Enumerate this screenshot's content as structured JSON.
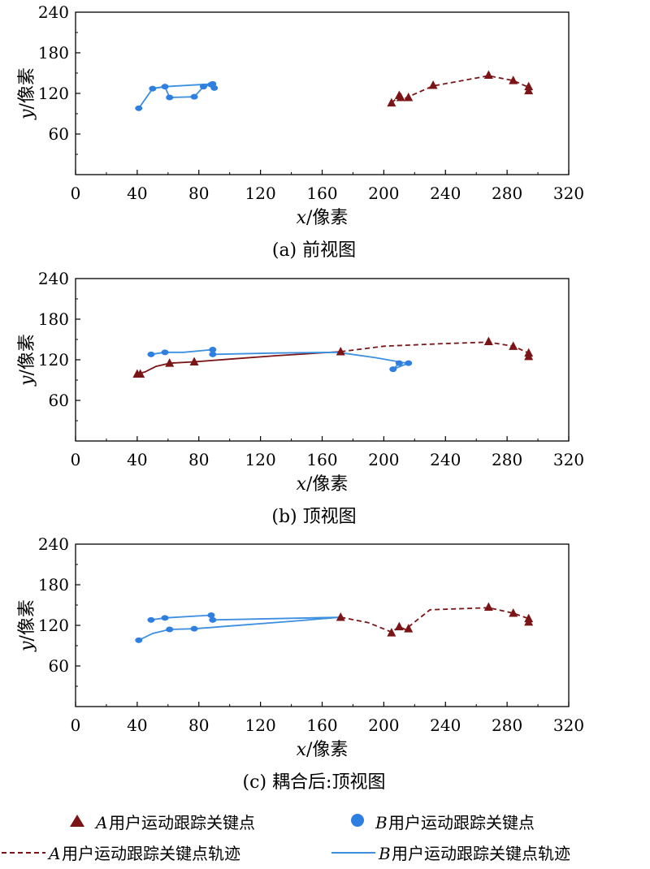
{
  "colors": {
    "series_a": "#7b1416",
    "series_b": "#3d8fe0",
    "marker_b": "#2f7fe0",
    "axis": "#000000"
  },
  "chart_data": [
    {
      "type": "line",
      "panel": "a",
      "caption": "(a) 前视图",
      "xlabel_var": "x",
      "xlabel_unit": "/像素",
      "ylabel_var": "y",
      "ylabel_unit": "/像素",
      "xlim": [
        0,
        320
      ],
      "ylim": [
        0,
        240
      ],
      "xticks": [
        0,
        40,
        80,
        120,
        160,
        200,
        240,
        280,
        320
      ],
      "yticks": [
        60,
        120,
        180,
        240
      ],
      "series": [
        {
          "name": "B",
          "style": "solid",
          "x": [
            41,
            50,
            58,
            61,
            77,
            83,
            88,
            90,
            89,
            58,
            49
          ],
          "y": [
            98,
            127,
            130,
            114,
            115,
            130,
            133,
            128,
            134,
            130,
            127
          ],
          "markers": [
            [
              41,
              98
            ],
            [
              50,
              127
            ],
            [
              58,
              130
            ],
            [
              61,
              114
            ],
            [
              77,
              115
            ],
            [
              83,
              130
            ],
            [
              88,
              133
            ],
            [
              90,
              128
            ],
            [
              89,
              134
            ]
          ]
        },
        {
          "name": "A",
          "style": "dashed",
          "x": [
            205,
            210,
            214,
            232,
            268,
            284,
            294,
            294
          ],
          "y": [
            106,
            116,
            113,
            131,
            146,
            139,
            129,
            124
          ],
          "markers": [
            [
              205,
              106
            ],
            [
              210,
              117
            ],
            [
              211,
              114
            ],
            [
              216,
              114
            ],
            [
              232,
              132
            ],
            [
              268,
              147
            ],
            [
              284,
              139
            ],
            [
              294,
              130
            ],
            [
              294,
              124
            ]
          ]
        }
      ]
    },
    {
      "type": "line",
      "panel": "b",
      "caption": "(b) 顶视图",
      "xlabel_var": "x",
      "xlabel_unit": "/像素",
      "ylabel_var": "y",
      "ylabel_unit": "/像素",
      "xlim": [
        0,
        320
      ],
      "ylim": [
        0,
        240
      ],
      "xticks": [
        0,
        40,
        80,
        120,
        160,
        200,
        240,
        280,
        320
      ],
      "yticks": [
        60,
        120,
        180,
        240
      ],
      "series": [
        {
          "name": "A-solid",
          "style": "solid-a",
          "x": [
            40,
            45,
            52,
            61,
            77,
            100,
            130,
            172
          ],
          "y": [
            99,
            102,
            110,
            115,
            117,
            121,
            126,
            132
          ],
          "markers": []
        },
        {
          "name": "B",
          "style": "solid",
          "x": [
            49,
            58,
            70,
            89,
            90,
            130,
            170,
            195,
            212,
            216,
            206,
            210
          ],
          "y": [
            128,
            131,
            131,
            135,
            128,
            130,
            131,
            123,
            116,
            115,
            106,
            115
          ],
          "markers": [
            [
              49,
              128
            ],
            [
              58,
              131
            ],
            [
              89,
              135
            ],
            [
              89,
              128
            ],
            [
              206,
              106
            ],
            [
              210,
              115
            ],
            [
              216,
              115
            ]
          ]
        },
        {
          "name": "A",
          "style": "dashed",
          "x": [
            172,
            200,
            240,
            268,
            284,
            294,
            294
          ],
          "y": [
            132,
            140,
            144,
            146,
            140,
            130,
            125
          ],
          "markers": [
            [
              40,
              99
            ],
            [
              42,
              99
            ],
            [
              61,
              115
            ],
            [
              77,
              117
            ],
            [
              172,
              132
            ],
            [
              268,
              147
            ],
            [
              284,
              140
            ],
            [
              294,
              130
            ],
            [
              294,
              125
            ]
          ]
        }
      ]
    },
    {
      "type": "line",
      "panel": "c",
      "caption": "(c) 耦合后:顶视图",
      "xlabel_var": "x",
      "xlabel_unit": "/像素",
      "ylabel_var": "y",
      "ylabel_unit": "/像素",
      "xlim": [
        0,
        320
      ],
      "ylim": [
        0,
        240
      ],
      "xticks": [
        0,
        40,
        80,
        120,
        160,
        200,
        240,
        280,
        320
      ],
      "yticks": [
        60,
        120,
        180,
        240
      ],
      "series": [
        {
          "name": "B",
          "style": "solid",
          "x": [
            41,
            50,
            61,
            77,
            100,
            140,
            172,
            130,
            89,
            88,
            58,
            49
          ],
          "y": [
            98,
            108,
            114,
            115,
            119,
            126,
            132,
            130,
            128,
            135,
            131,
            128
          ],
          "markers": [
            [
              41,
              98
            ],
            [
              61,
              114
            ],
            [
              77,
              115
            ],
            [
              89,
              128
            ],
            [
              88,
              135
            ],
            [
              58,
              131
            ],
            [
              49,
              128
            ]
          ]
        },
        {
          "name": "A",
          "style": "dashed",
          "x": [
            172,
            190,
            205,
            210,
            214,
            230,
            268,
            284,
            294,
            294
          ],
          "y": [
            132,
            124,
            110,
            118,
            114,
            143,
            146,
            138,
            130,
            125
          ],
          "markers": [
            [
              172,
              132
            ],
            [
              205,
              109
            ],
            [
              210,
              118
            ],
            [
              216,
              115
            ],
            [
              268,
              147
            ],
            [
              284,
              138
            ],
            [
              294,
              130
            ],
            [
              294,
              125
            ]
          ]
        }
      ]
    }
  ],
  "legend": {
    "a_points_var": "A",
    "a_points_text": "用户运动跟踪关键点",
    "b_points_var": "B",
    "b_points_text": "用户运动跟踪关键点",
    "a_track_var": "A",
    "a_track_text": "用户运动跟踪关键点轨迹",
    "b_track_var": "B",
    "b_track_text": "用户运动跟踪关键点轨迹"
  }
}
